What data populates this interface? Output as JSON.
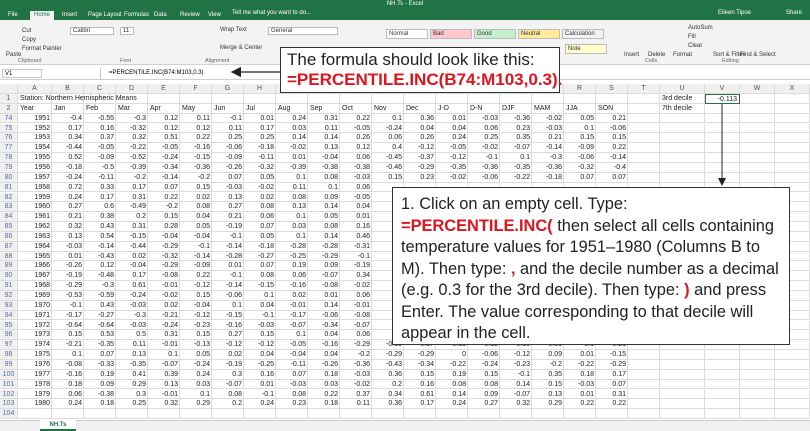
{
  "window": {
    "title": "NH.Ts - Excel",
    "user": "Eileen Tipoe",
    "share": "Share"
  },
  "tabs": [
    "File",
    "Home",
    "Insert",
    "Page Layout",
    "Formulas",
    "Data",
    "Review",
    "View"
  ],
  "tell_me": "Tell me what you want to do...",
  "ribbon": {
    "items": [
      "Paste",
      "Cut",
      "Copy",
      "Format Painter",
      "Calibri",
      "11",
      "Wrap Text",
      "Merge & Center",
      "General",
      "Normal",
      "Bad",
      "Good",
      "Neutral",
      "Calculation",
      "Note",
      "Insert",
      "Delete",
      "Format",
      "AutoSum",
      "Fill",
      "Clear",
      "Sort & Filter",
      "Find & Select"
    ],
    "groups": [
      "Clipboard",
      "Font",
      "Alignment",
      "Cells",
      "Editing"
    ]
  },
  "formula_bar": {
    "name_box": "V1",
    "formula": "=PERCENTILE.INC(B74:M103,0.3)"
  },
  "sheet": {
    "columns": [
      "A",
      "B",
      "C",
      "D",
      "E",
      "F",
      "G",
      "H",
      "I",
      "J",
      "K",
      "L",
      "M",
      "N",
      "O",
      "P",
      "Q",
      "R",
      "S",
      "T",
      "U",
      "V",
      "W",
      "X"
    ],
    "row_numbers": [
      1,
      2,
      74,
      75,
      76,
      77,
      78,
      79,
      80,
      81,
      82,
      83,
      84,
      85,
      86,
      87,
      88,
      89,
      90,
      91,
      92,
      93,
      94,
      95,
      96,
      97,
      98,
      99,
      100,
      101,
      102,
      103,
      104
    ],
    "title": "Station: Northern Hemispheric Means",
    "headers": [
      "Year",
      "Jan",
      "Feb",
      "Mar",
      "Apr",
      "May",
      "Jun",
      "Jul",
      "Aug",
      "Sep",
      "Oct",
      "Nov",
      "Dec",
      "J-D",
      "D-N",
      "DJF",
      "MAM",
      "JJA",
      "SON"
    ],
    "side_labels": [
      "3rd decile",
      "7th decile"
    ],
    "result": -0.113,
    "rows": [
      [
        1951,
        -0.4,
        -0.55,
        -0.3,
        0.12,
        0.11,
        -0.1,
        0.01,
        0.24,
        0.31,
        0.22,
        0.1,
        0.36,
        0.01,
        -0.03,
        -0.36,
        -0.02,
        0.05,
        0.21
      ],
      [
        1952,
        0.17,
        0.16,
        -0.32,
        0.12,
        0.12,
        0.11,
        0.17,
        0.03,
        0.11,
        -0.05,
        -0.24,
        0.04,
        0.04,
        0.06,
        0.23,
        -0.03,
        0.1,
        -0.06
      ],
      [
        1953,
        0.34,
        0.37,
        0.32,
        0.51,
        0.22,
        0.25,
        0.25,
        0.14,
        0.14,
        0.26,
        0.06,
        0.26,
        0.24,
        0.25,
        0.35,
        0.21,
        0.15,
        0.15
      ],
      [
        1954,
        -0.44,
        -0.05,
        -0.22,
        -0.05,
        -0.16,
        -0.06,
        -0.18,
        -0.02,
        0.13,
        0.12,
        0.4,
        -0.12,
        -0.05,
        -0.02,
        -0.07,
        -0.14,
        -0.09,
        0.22
      ],
      [
        1955,
        0.52,
        -0.09,
        -0.52,
        -0.24,
        -0.15,
        -0.09,
        -0.11,
        0.01,
        -0.04,
        0.06,
        -0.45,
        -0.37,
        -0.12,
        -0.1,
        0.1,
        -0.3,
        -0.06,
        -0.14
      ],
      [
        1956,
        -0.18,
        -0.5,
        -0.39,
        -0.34,
        -0.36,
        -0.26,
        -0.32,
        -0.39,
        -0.38,
        -0.38,
        -0.46,
        -0.29,
        -0.35,
        -0.36,
        -0.35,
        -0.36,
        -0.32,
        -0.4
      ],
      [
        1957,
        -0.24,
        -0.11,
        -0.2,
        -0.14,
        -0.2,
        0.07,
        0.05,
        0.1,
        0.08,
        -0.03,
        0.15,
        0.23,
        -0.02,
        -0.06,
        -0.22,
        -0.18,
        0.07,
        0.07
      ],
      [
        1958,
        0.72,
        0.33,
        0.17,
        0.07,
        0.15,
        -0.03,
        -0.02,
        0.11,
        0.1,
        0.06
      ],
      [
        1959,
        0.24,
        0.17,
        0.31,
        0.22,
        0.02,
        0.13,
        0.02,
        0.08,
        0.09,
        -0.05
      ],
      [
        1960,
        0.27,
        0.6,
        -0.49,
        -0.2,
        0.08,
        0.27,
        0.08,
        0.13,
        0.14,
        0.04
      ],
      [
        1961,
        0.21,
        0.38,
        0.2,
        0.15,
        0.04,
        0.21,
        0.06,
        0.1,
        0.05,
        0.01
      ],
      [
        1962,
        0.32,
        0.43,
        0.31,
        0.28,
        0.05,
        -0.19,
        0.07,
        0.03,
        0.08,
        0.16
      ],
      [
        1963,
        0.13,
        0.54,
        -0.15,
        -0.04,
        -0.04,
        -0.1,
        0.05,
        0.1,
        0.14,
        0.46
      ],
      [
        1964,
        -0.03,
        -0.14,
        -0.44,
        -0.29,
        -0.1,
        -0.14,
        -0.18,
        -0.28,
        -0.28,
        -0.31
      ],
      [
        1965,
        0.01,
        -0.43,
        0.02,
        -0.32,
        -0.14,
        -0.28,
        -0.27,
        -0.25,
        -0.29,
        -0.1
      ],
      [
        1966,
        -0.26,
        0.12,
        -0.04,
        -0.29,
        -0.09,
        0.01,
        0.07,
        0.19,
        0.09,
        -0.19
      ],
      [
        1967,
        -0.19,
        -0.48,
        0.17,
        -0.08,
        0.22,
        -0.1,
        0.08,
        0.06,
        -0.07,
        0.34
      ],
      [
        1968,
        -0.29,
        -0.3,
        0.61,
        -0.01,
        -0.12,
        -0.14,
        -0.15,
        -0.16,
        -0.08,
        -0.02
      ],
      [
        1969,
        -0.53,
        -0.59,
        -0.24,
        -0.02,
        0.15,
        -0.06,
        0.1,
        0.02,
        0.01,
        0.06
      ],
      [
        1970,
        -0.1,
        0.43,
        -0.03,
        0.02,
        -0.04,
        0.1,
        0.04,
        -0.01,
        0.14,
        -0.01
      ],
      [
        1971,
        -0.17,
        -0.27,
        -0.3,
        -0.21,
        -0.12,
        -0.15,
        -0.1,
        -0.17,
        -0.06,
        -0.08
      ],
      [
        1972,
        -0.64,
        -0.64,
        -0.03,
        -0.24,
        -0.23,
        -0.16,
        -0.03,
        -0.07,
        -0.34,
        -0.07
      ],
      [
        1973,
        0.15,
        0.53,
        0.5,
        0.31,
        0.15,
        0.27,
        0.15,
        0.1,
        0.04,
        0.06
      ],
      [
        1974,
        -0.21,
        -0.35,
        0.11,
        -0.01,
        -0.13,
        -0.12,
        -0.12,
        -0.05,
        -0.16,
        -0.29,
        -0.19,
        -0.27,
        -0.15,
        -0.12,
        -0.16,
        -0.01,
        -0.1,
        -0.21
      ],
      [
        1975,
        0.1,
        0.07,
        0.13,
        0.1,
        0.05,
        0.02,
        0.04,
        -0.04,
        0.04,
        -0.2,
        -0.29,
        -0.29,
        0,
        -0.06,
        -0.12,
        0.09,
        0.01,
        -0.15
      ],
      [
        1976,
        -0.08,
        -0.33,
        -0.35,
        -0.07,
        -0.24,
        -0.19,
        -0.25,
        -0.11,
        -0.26,
        -0.36,
        -0.43,
        -0.34,
        -0.22,
        -0.24,
        -0.23,
        -0.2,
        -0.22,
        -0.29
      ],
      [
        1977,
        -0.16,
        0.19,
        0.41,
        0.39,
        0.24,
        0.3,
        0.16,
        0.07,
        0.18,
        -0.03,
        0.36,
        0.15,
        0.19,
        0.15,
        -0.1,
        0.35,
        0.18,
        0.17
      ],
      [
        1978,
        0.18,
        0.09,
        0.29,
        0.13,
        0.03,
        -0.07,
        0.01,
        -0.03,
        0.03,
        -0.02,
        0.2,
        0.16,
        0.08,
        0.08,
        0.14,
        0.15,
        -0.03,
        0.07
      ],
      [
        1979,
        0.06,
        -0.38,
        0.3,
        -0.01,
        0.1,
        0.08,
        -0.1,
        0.08,
        0.22,
        0.37,
        0.34,
        0.61,
        0.14,
        0.09,
        -0.07,
        0.13,
        0.01,
        0.31
      ],
      [
        1980,
        0.24,
        0.18,
        0.25,
        0.32,
        0.29,
        0.2,
        0.24,
        0.23,
        0.18,
        0.11,
        0.36,
        0.17,
        0.24,
        0.27,
        0.32,
        0.29,
        0.22,
        0.22
      ]
    ]
  },
  "sheet_tabs": [
    "NH.Ts"
  ],
  "callouts": [
    {
      "text": "The formula should look like this:",
      "formula": "=PERCENTILE.INC(B74:M103,0.3).",
      "formula_color": "#e0141e"
    },
    {
      "segments": [
        {
          "text": "1. Click on an empty cell. Type: "
        },
        {
          "text": "=PERCENTILE.INC(",
          "color": "#e0141e"
        },
        {
          "text": " then select all cells containing temperature values for 1951–1980 (Columns B to M). Then type: "
        },
        {
          "text": ",",
          "color": "#e0141e"
        },
        {
          "text": " and the decile number as a decimal (e.g. 0.3 for the 3rd decile). Then type: "
        },
        {
          "text": ")",
          "color": "#e0141e"
        },
        {
          "text": " and press Enter. The value corresponding to that decile will appear in the cell."
        }
      ]
    }
  ]
}
